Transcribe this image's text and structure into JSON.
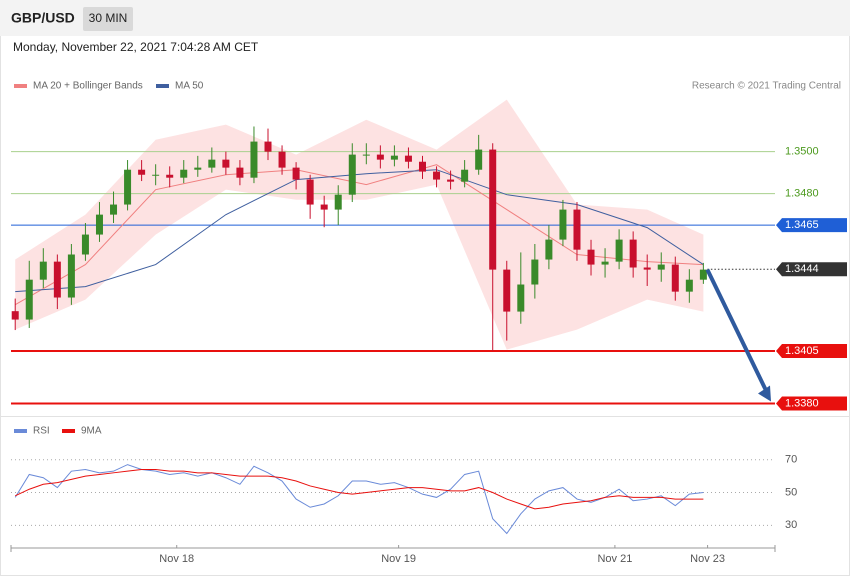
{
  "header": {
    "symbol": "GBP/USD",
    "interval": "30 MIN",
    "timestamp": "Monday, November 22, 2021 7:04:28 AM CET"
  },
  "chart_data": [
    {
      "type": "candlestick",
      "credit": "Research © 2021 Trading Central",
      "up_color": "#3a8a2a",
      "down_color": "#c8102e",
      "x": [
        0,
        1,
        2,
        3,
        4,
        5,
        6,
        7,
        8,
        9,
        10,
        11,
        12,
        13,
        14,
        15,
        16,
        17,
        18,
        19,
        20,
        21,
        22,
        23,
        24,
        25,
        26,
        27,
        28,
        29,
        30,
        31,
        32,
        33,
        34,
        35,
        36,
        37,
        38,
        39,
        40,
        41,
        42,
        43,
        44,
        45,
        46,
        47,
        48,
        49
      ],
      "open": [
        1.3424,
        1.342,
        1.3439,
        1.34476,
        1.34305,
        1.3451,
        1.34605,
        1.347,
        1.34748,
        1.34914,
        1.3489,
        1.3489,
        1.34876,
        1.34914,
        1.34924,
        1.34962,
        1.34924,
        1.34876,
        1.35048,
        1.35,
        1.34924,
        1.34867,
        1.34748,
        1.34724,
        1.34795,
        1.34986,
        1.34986,
        1.34962,
        1.34981,
        1.34952,
        1.34905,
        1.34867,
        1.34857,
        1.34914,
        1.3501,
        1.34438,
        1.34238,
        1.34367,
        1.34486,
        1.34581,
        1.34724,
        1.34533,
        1.34462,
        1.34476,
        1.34581,
        1.34448,
        1.34438,
        1.34462,
        1.34333,
        1.3439
      ],
      "high": [
        1.343,
        1.3448,
        1.3454,
        1.3451,
        1.3456,
        1.3466,
        1.3476,
        1.3481,
        1.3496,
        1.3496,
        1.3494,
        1.3493,
        1.3496,
        1.3498,
        1.3502,
        1.35,
        1.3496,
        1.3512,
        1.3511,
        1.3503,
        1.3495,
        1.3489,
        1.3479,
        1.3484,
        1.3504,
        1.3504,
        1.3503,
        1.3503,
        1.3502,
        1.3498,
        1.3493,
        1.3491,
        1.3496,
        1.3508,
        1.3504,
        1.3448,
        1.3452,
        1.3456,
        1.3465,
        1.3477,
        1.3476,
        1.3458,
        1.3454,
        1.3463,
        1.3462,
        1.3451,
        1.3452,
        1.345,
        1.3444,
        1.3447
      ],
      "low": [
        1.3415,
        1.3416,
        1.3435,
        1.3425,
        1.3427,
        1.3448,
        1.3457,
        1.3466,
        1.3472,
        1.3486,
        1.3484,
        1.3483,
        1.3485,
        1.3488,
        1.349,
        1.3489,
        1.3484,
        1.3485,
        1.3496,
        1.3489,
        1.3482,
        1.3468,
        1.3464,
        1.3465,
        1.3476,
        1.3494,
        1.3492,
        1.3493,
        1.3492,
        1.3487,
        1.3483,
        1.3482,
        1.3483,
        1.3489,
        1.3405,
        1.341,
        1.3418,
        1.343,
        1.3444,
        1.3455,
        1.3448,
        1.3441,
        1.344,
        1.3444,
        1.344,
        1.3436,
        1.3438,
        1.3429,
        1.3428,
        1.3437
      ],
      "close": [
        1.342,
        1.3439,
        1.34476,
        1.34305,
        1.3451,
        1.34605,
        1.347,
        1.34748,
        1.34914,
        1.3489,
        1.3489,
        1.34876,
        1.34914,
        1.34924,
        1.34962,
        1.34924,
        1.34876,
        1.35048,
        1.35,
        1.34924,
        1.34867,
        1.34748,
        1.34724,
        1.34795,
        1.34986,
        1.34986,
        1.34962,
        1.34981,
        1.34952,
        1.34905,
        1.34867,
        1.34857,
        1.34914,
        1.3501,
        1.34438,
        1.34238,
        1.34367,
        1.34486,
        1.34581,
        1.34724,
        1.34533,
        1.34462,
        1.34476,
        1.34581,
        1.34448,
        1.34438,
        1.34462,
        1.34333,
        1.3439,
        1.34438
      ],
      "series": [
        {
          "name": "MA 20 + Bollinger Bands",
          "color": "#f08080",
          "band_color": "#fde2e2",
          "x": [
            0,
            5,
            10,
            15,
            20,
            25,
            30,
            35,
            40,
            45,
            49
          ],
          "values": [
            1.34271,
            1.34462,
            1.34819,
            1.3489,
            1.34914,
            1.34843,
            1.34938,
            1.34724,
            1.3451,
            1.34476,
            1.34462
          ],
          "upper": [
            1.34486,
            1.347,
            1.35057,
            1.35129,
            1.34986,
            1.35152,
            1.3501,
            1.35248,
            1.34748,
            1.34724,
            1.34605
          ],
          "lower": [
            1.34152,
            1.34295,
            1.34605,
            1.34819,
            1.34771,
            1.34771,
            1.34843,
            1.34057,
            1.34152,
            1.34295,
            1.34238
          ]
        },
        {
          "name": "MA 50",
          "color": "#3f5f9f",
          "x": [
            0,
            5,
            10,
            15,
            20,
            25,
            30,
            35,
            40,
            45,
            49
          ],
          "values": [
            1.34333,
            1.34357,
            1.34462,
            1.347,
            1.34867,
            1.34895,
            1.34914,
            1.34795,
            1.34748,
            1.34638,
            1.34462
          ]
        }
      ],
      "levels": [
        {
          "value": 1.35,
          "label": "1.3500",
          "color": "#a8d08d",
          "text_color": "#4c9a1e",
          "style": "solid",
          "tag": false
        },
        {
          "value": 1.348,
          "label": "1.3480",
          "color": "#a8d08d",
          "text_color": "#4c9a1e",
          "style": "solid",
          "tag": false
        },
        {
          "value": 1.3465,
          "label": "1.3465",
          "color": "#1f5fd6",
          "text_color": "#ffffff",
          "style": "solid",
          "tag": true
        },
        {
          "value": 1.3444,
          "label": "1.3444",
          "color": "#333333",
          "text_color": "#ffffff",
          "style": "dotted",
          "tag": true
        },
        {
          "value": 1.3405,
          "label": "1.3405",
          "color": "#e8100e",
          "text_color": "#ffffff",
          "style": "solid",
          "tag": true
        },
        {
          "value": 1.338,
          "label": "1.3380",
          "color": "#e8100e",
          "text_color": "#ffffff",
          "style": "solid",
          "tag": true
        }
      ],
      "xlim": [
        -0.3,
        54.1
      ],
      "ylim": [
        1.3375,
        1.3527
      ],
      "xticks": [
        {
          "value": 11.5,
          "label": "Nov 18"
        },
        {
          "value": 27.3,
          "label": "Nov 19"
        },
        {
          "value": 42.7,
          "label": "Nov 21"
        },
        {
          "value": 49.3,
          "label": "Nov 23"
        }
      ]
    },
    {
      "type": "line",
      "x": [
        0,
        1,
        2,
        3,
        4,
        5,
        6,
        7,
        8,
        9,
        10,
        11,
        12,
        13,
        14,
        15,
        16,
        17,
        18,
        19,
        20,
        21,
        22,
        23,
        24,
        25,
        26,
        27,
        28,
        29,
        30,
        31,
        32,
        33,
        34,
        35,
        36,
        37,
        38,
        39,
        40,
        41,
        42,
        43,
        44,
        45,
        46,
        47,
        48,
        49
      ],
      "series": [
        {
          "name": "RSI",
          "color": "#6a8ad8",
          "values": [
            47,
            61,
            59,
            53,
            63,
            64,
            62,
            63,
            67,
            64,
            63,
            61,
            62,
            60,
            62,
            59,
            55,
            66,
            62,
            57,
            46,
            41,
            43,
            48,
            57,
            57,
            55,
            56,
            53,
            49,
            47,
            52,
            61,
            63,
            34,
            25,
            37,
            46,
            51,
            53,
            46,
            44,
            47,
            52,
            45,
            46,
            48,
            42,
            49,
            50
          ]
        },
        {
          "name": "9MA",
          "color": "#e8100e",
          "values": [
            48,
            52,
            55,
            56,
            58,
            60,
            61,
            62,
            63,
            64,
            64,
            63,
            63,
            62,
            62,
            61,
            60,
            60,
            60,
            59,
            57,
            54,
            52,
            50,
            49,
            50,
            51,
            52,
            53,
            53,
            52,
            51,
            51,
            53,
            50,
            46,
            43,
            40,
            41,
            43,
            44,
            45,
            47,
            48,
            47,
            47,
            47,
            46,
            46,
            46
          ]
        }
      ],
      "xlim": [
        -0.3,
        54.1
      ],
      "ylim": [
        18,
        82
      ],
      "yticks": [
        30,
        50,
        70
      ],
      "grid": true
    }
  ]
}
